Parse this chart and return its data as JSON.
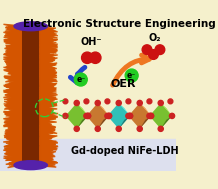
{
  "title": "Electronic Structure Engineering",
  "subtitle": "Gd-doped NiFe-LDH",
  "oh_label": "OH⁻",
  "o2_label": "O₂",
  "oer_label": "OER",
  "electron_label": "e⁻",
  "bg_color": "#f5f0cc",
  "rod_spike_color": "#d45500",
  "rod_core_color": "#7a2800",
  "rod_cap_color": "#5522aa",
  "ldh_ni_color": "#c87830",
  "ldh_fe_color": "#78c030",
  "ldh_gd_color": "#30c0b8",
  "ldh_dot_color": "#cc2222",
  "oh_dot_color": "#cc1111",
  "o2_dot_color": "#cc1111",
  "arrow_blue_color": "#2244cc",
  "arrow_orange_color": "#ee7722",
  "electron_color": "#22cc22",
  "title_fontsize": 7.5,
  "label_fontsize": 7,
  "oer_fontsize": 8,
  "sub_fontsize": 7
}
